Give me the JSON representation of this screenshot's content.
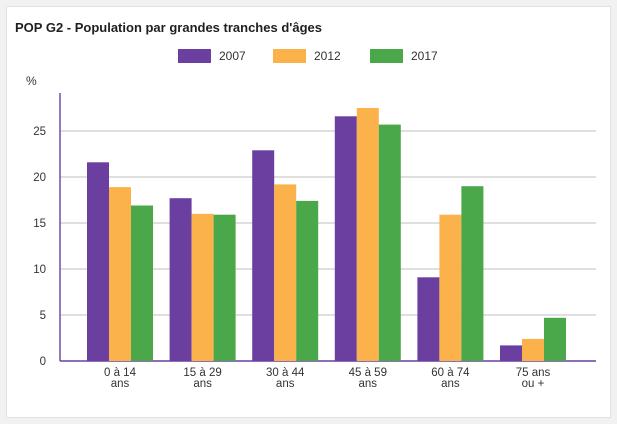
{
  "chart_data": {
    "type": "bar",
    "title": "POP G2 - Population par grandes tranches d'âges",
    "xlabel": "",
    "ylabel": "%",
    "ylim": [
      0,
      30
    ],
    "yticks": [
      "0",
      "5",
      "10",
      "15",
      "20",
      "25"
    ],
    "yticks_values": [
      0,
      5,
      10,
      15,
      20,
      25
    ],
    "grid": true,
    "legend_position": "top",
    "categories": [
      [
        "0 à 14",
        "ans"
      ],
      [
        "15 à 29",
        "ans"
      ],
      [
        "30 à 44",
        "ans"
      ],
      [
        "45 à 59",
        "ans"
      ],
      [
        "60 à 74",
        "ans"
      ],
      [
        "75 ans",
        "ou +"
      ]
    ],
    "series": [
      {
        "name": "2007",
        "color": "#6a3fa0",
        "values": [
          21.6,
          17.7,
          22.9,
          26.6,
          9.1,
          1.7
        ]
      },
      {
        "name": "2012",
        "color": "#fbb24a",
        "values": [
          18.9,
          16.0,
          19.2,
          27.5,
          15.9,
          2.4
        ]
      },
      {
        "name": "2017",
        "color": "#4aa84a",
        "values": [
          16.9,
          15.9,
          17.4,
          25.7,
          19.0,
          4.7
        ]
      }
    ]
  }
}
